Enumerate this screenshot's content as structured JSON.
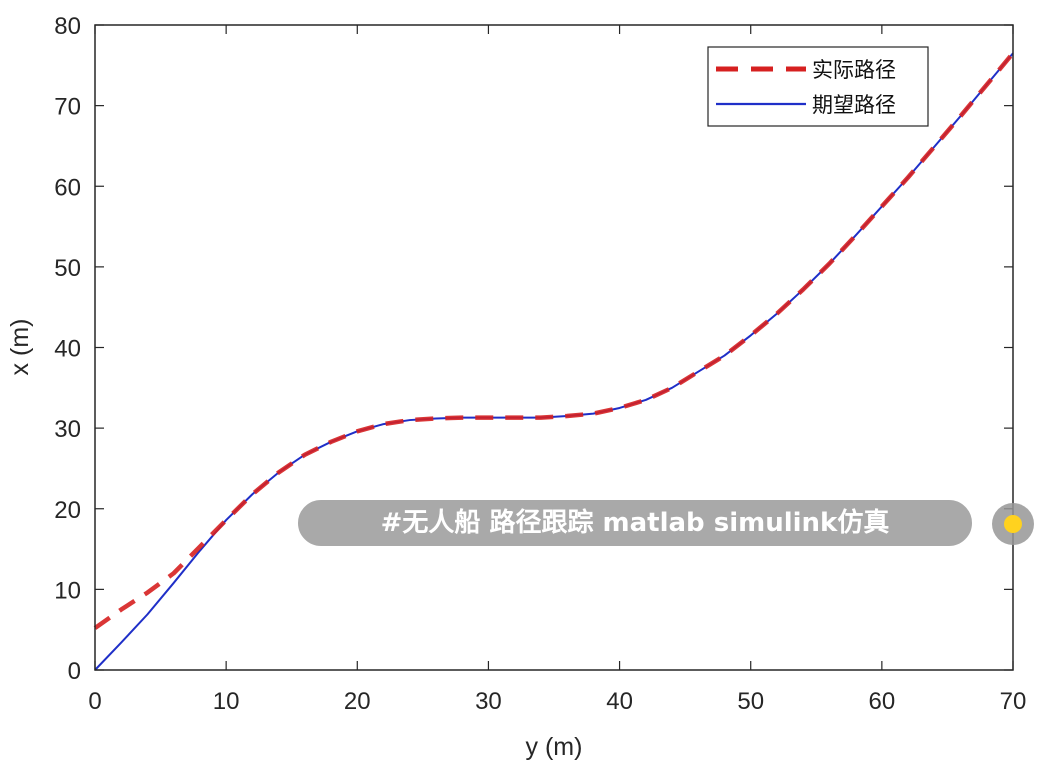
{
  "chart_data": {
    "type": "line",
    "title": "",
    "xlabel": "y (m)",
    "ylabel": "x (m)",
    "xlim": [
      0,
      70
    ],
    "ylim": [
      0,
      80
    ],
    "xticks": [
      0,
      10,
      20,
      30,
      40,
      50,
      60,
      70
    ],
    "yticks": [
      0,
      10,
      20,
      30,
      40,
      50,
      60,
      70,
      80
    ],
    "grid": false,
    "legend_position": "top-right",
    "series": [
      {
        "name": "实际路径",
        "style": "dashed",
        "color": "#d62020",
        "x": [
          0,
          2,
          4,
          6,
          8,
          10,
          12,
          14,
          16,
          18,
          20,
          22,
          24,
          26,
          28,
          30,
          32,
          34,
          36,
          38,
          40,
          42,
          44,
          46,
          48,
          50,
          52,
          54,
          56,
          58,
          60,
          62,
          64,
          66,
          68,
          70
        ],
        "y": [
          5.2,
          7.5,
          9.6,
          12.0,
          15.3,
          18.6,
          21.8,
          24.5,
          26.7,
          28.3,
          29.6,
          30.5,
          31.0,
          31.2,
          31.3,
          31.3,
          31.3,
          31.3,
          31.5,
          31.8,
          32.5,
          33.5,
          35.0,
          37.0,
          39.0,
          41.5,
          44.2,
          47.2,
          50.4,
          53.9,
          57.5,
          61.1,
          64.9,
          68.7,
          72.6,
          76.5
        ]
      },
      {
        "name": "期望路径",
        "style": "solid",
        "color": "#1f2fc8",
        "x": [
          0,
          2,
          4,
          6,
          8,
          10,
          12,
          14,
          16,
          18,
          20,
          22,
          24,
          26,
          28,
          30,
          32,
          34,
          36,
          38,
          40,
          42,
          44,
          46,
          48,
          50,
          52,
          54,
          56,
          58,
          60,
          62,
          64,
          66,
          68,
          70
        ],
        "y": [
          0,
          3.4,
          6.9,
          10.8,
          14.8,
          18.6,
          21.8,
          24.5,
          26.7,
          28.3,
          29.6,
          30.5,
          31.0,
          31.2,
          31.3,
          31.3,
          31.3,
          31.3,
          31.5,
          31.8,
          32.5,
          33.5,
          35.0,
          37.0,
          39.0,
          41.5,
          44.2,
          47.2,
          50.4,
          53.9,
          57.5,
          61.1,
          64.9,
          68.7,
          72.6,
          76.5
        ]
      }
    ]
  },
  "overlay": {
    "caption": "#无人船 路径跟踪 matlab simulink仿真",
    "dot_color": "#ffd21f"
  }
}
